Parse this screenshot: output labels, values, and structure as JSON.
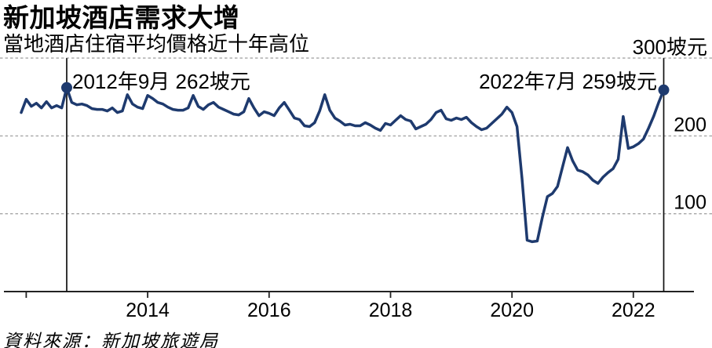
{
  "header": {
    "title": "新加坡酒店需求大增",
    "subtitle": "當地酒店住宿平均價格近十年高位"
  },
  "footer": {
    "source": "資料來源：新加坡旅遊局"
  },
  "colors": {
    "line": "#1e3a6e",
    "dot": "#1e3a6e",
    "grid": "#a6a6a6",
    "axis": "#222222",
    "annotation_line": "#111111",
    "text": "#000000",
    "background": "#ffffff"
  },
  "chart_data": {
    "type": "line",
    "title": "新加坡酒店需求大增",
    "subtitle": "當地酒店住宿平均價格近十年高位",
    "unit": "坡元",
    "y_axis_top_label": "300坡元",
    "ylim": [
      0,
      300
    ],
    "y_gridlines": [
      300,
      200,
      100
    ],
    "y_tick_labels": [
      {
        "value": 200,
        "label": "200"
      },
      {
        "value": 100,
        "label": "100"
      }
    ],
    "grid": "horizontal-dashed",
    "legend": "none",
    "xlim_years": [
      2011.9167,
      2022.5
    ],
    "x_ticks": [
      {
        "year": 2012,
        "label": ""
      },
      {
        "year": 2014,
        "label": "2014"
      },
      {
        "year": 2016,
        "label": "2016"
      },
      {
        "year": 2018,
        "label": "2018"
      },
      {
        "year": 2020,
        "label": "2020"
      },
      {
        "year": 2022,
        "label": "2022"
      }
    ],
    "annotations": [
      {
        "label": "2012年9月 262坡元",
        "year": 2012.6667,
        "value": 262
      },
      {
        "label": "2022年7月 259坡元",
        "year": 2022.5,
        "value": 259
      }
    ],
    "series": [
      {
        "name": "酒店住宿平均價格",
        "frequency": "monthly",
        "start": "2011-12",
        "end": "2022-07",
        "values": [
          230,
          247,
          238,
          242,
          236,
          244,
          236,
          239,
          236,
          262,
          243,
          240,
          241,
          239,
          235,
          234,
          234,
          232,
          236,
          230,
          232,
          253,
          241,
          237,
          235,
          252,
          248,
          243,
          241,
          237,
          234,
          233,
          233,
          236,
          252,
          238,
          234,
          240,
          243,
          237,
          234,
          231,
          228,
          227,
          231,
          248,
          236,
          226,
          231,
          229,
          226,
          236,
          243,
          233,
          223,
          221,
          213,
          212,
          217,
          232,
          253,
          233,
          223,
          219,
          214,
          215,
          213,
          213,
          217,
          214,
          210,
          207,
          216,
          214,
          220,
          226,
          221,
          219,
          209,
          212,
          215,
          221,
          230,
          233,
          222,
          220,
          223,
          221,
          224,
          217,
          212,
          208,
          210,
          216,
          222,
          228,
          237,
          230,
          212,
          145,
          66,
          64,
          65,
          95,
          122,
          126,
          135,
          160,
          185,
          168,
          156,
          154,
          150,
          143,
          139,
          147,
          153,
          158,
          170,
          225,
          184,
          186,
          190,
          196,
          210,
          225,
          243,
          259
        ]
      }
    ]
  }
}
